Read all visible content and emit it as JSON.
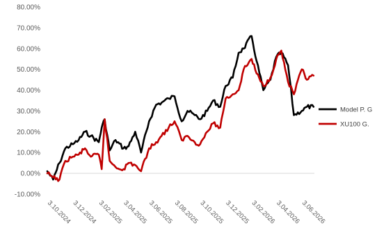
{
  "chart_data": {
    "type": "line",
    "title": "",
    "xlabel": "",
    "ylabel": "",
    "ylim": [
      -10,
      80
    ],
    "y_ticks": [
      "-10.00%",
      "0.00%",
      "10.00%",
      "20.00%",
      "30.00%",
      "40.00%",
      "50.00%",
      "60.00%",
      "70.00%",
      "80.00%"
    ],
    "x_ticks": [
      "3.10.2024",
      "3.12.2024",
      "3.02.2025",
      "3.04.2025",
      "3.06.2025",
      "3.08.2025",
      "3.10.2025",
      "3.12.2025",
      "3.02.2026",
      "3.04.2026",
      "3.06.2026"
    ],
    "x_range": [
      "3.10.2024",
      "3.07.2026"
    ],
    "grid": false,
    "legend_position": "right",
    "series": [
      {
        "name": "Model P. G",
        "color": "#000000",
        "points": [
          [
            "3.10.2024",
            1
          ],
          [
            "17.10.2024",
            -3
          ],
          [
            "1.11.2024",
            5
          ],
          [
            "15.11.2024",
            12
          ],
          [
            "3.12.2024",
            14
          ],
          [
            "17.12.2024",
            16
          ],
          [
            "1.01.2025",
            20
          ],
          [
            "15.01.2025",
            18
          ],
          [
            "3.02.2025",
            15
          ],
          [
            "10.02.2025",
            22
          ],
          [
            "17.02.2025",
            26
          ],
          [
            "1.03.2025",
            11
          ],
          [
            "15.03.2025",
            16
          ],
          [
            "3.04.2025",
            12
          ],
          [
            "15.04.2025",
            13
          ],
          [
            "1.05.2025",
            20
          ],
          [
            "15.05.2025",
            10
          ],
          [
            "3.06.2025",
            25
          ],
          [
            "20.06.2025",
            33
          ],
          [
            "3.07.2025",
            34
          ],
          [
            "20.07.2025",
            36
          ],
          [
            "3.08.2025",
            37
          ],
          [
            "20.08.2025",
            25
          ],
          [
            "3.09.2025",
            30
          ],
          [
            "20.09.2025",
            28
          ],
          [
            "3.10.2025",
            26
          ],
          [
            "20.10.2025",
            30
          ],
          [
            "3.11.2025",
            35
          ],
          [
            "20.11.2025",
            32
          ],
          [
            "3.12.2025",
            42
          ],
          [
            "20.12.2025",
            46
          ],
          [
            "3.01.2026",
            58
          ],
          [
            "15.01.2026",
            60
          ],
          [
            "3.02.2026",
            66
          ],
          [
            "15.02.2026",
            54
          ],
          [
            "3.03.2026",
            40
          ],
          [
            "20.03.2026",
            45
          ],
          [
            "3.04.2026",
            56
          ],
          [
            "15.04.2026",
            58
          ],
          [
            "1.05.2026",
            52
          ],
          [
            "15.05.2026",
            28
          ],
          [
            "3.06.2026",
            30
          ],
          [
            "15.06.2026",
            32
          ],
          [
            "1.07.2026",
            32
          ]
        ]
      },
      {
        "name": "XU100 G.",
        "color": "#c00000",
        "points": [
          [
            "3.10.2024",
            0
          ],
          [
            "17.10.2024",
            -2
          ],
          [
            "1.11.2024",
            -3
          ],
          [
            "15.11.2024",
            6
          ],
          [
            "3.12.2024",
            8
          ],
          [
            "17.12.2024",
            9
          ],
          [
            "1.01.2025",
            12
          ],
          [
            "15.01.2025",
            8
          ],
          [
            "3.02.2025",
            9
          ],
          [
            "10.02.2025",
            2
          ],
          [
            "17.02.2025",
            26
          ],
          [
            "1.03.2025",
            6
          ],
          [
            "15.03.2025",
            3
          ],
          [
            "3.04.2025",
            2
          ],
          [
            "15.04.2025",
            5
          ],
          [
            "1.05.2025",
            4
          ],
          [
            "15.05.2025",
            1
          ],
          [
            "3.06.2025",
            12
          ],
          [
            "20.06.2025",
            15
          ],
          [
            "3.07.2025",
            18
          ],
          [
            "20.07.2025",
            22
          ],
          [
            "3.08.2025",
            25
          ],
          [
            "20.08.2025",
            16
          ],
          [
            "3.09.2025",
            18
          ],
          [
            "20.09.2025",
            15
          ],
          [
            "3.10.2025",
            14
          ],
          [
            "20.10.2025",
            20
          ],
          [
            "3.11.2025",
            24
          ],
          [
            "20.11.2025",
            22
          ],
          [
            "3.12.2025",
            36
          ],
          [
            "20.12.2025",
            38
          ],
          [
            "3.01.2026",
            40
          ],
          [
            "15.01.2026",
            50
          ],
          [
            "3.02.2026",
            55
          ],
          [
            "15.02.2026",
            48
          ],
          [
            "3.03.2026",
            42
          ],
          [
            "20.03.2026",
            46
          ],
          [
            "3.04.2026",
            55
          ],
          [
            "15.04.2026",
            59
          ],
          [
            "1.05.2026",
            44
          ],
          [
            "15.05.2026",
            38
          ],
          [
            "3.06.2026",
            50
          ],
          [
            "15.06.2026",
            45
          ],
          [
            "1.07.2026",
            47
          ]
        ]
      }
    ]
  }
}
